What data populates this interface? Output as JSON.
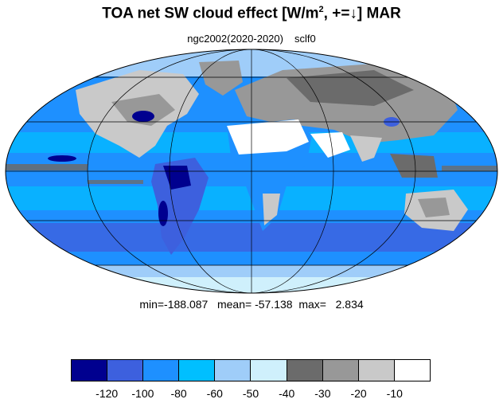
{
  "title": {
    "prefix": "TOA net SW cloud effect [W/m",
    "superscript": "2",
    "suffix": ", +=↓]  MAR"
  },
  "subtitle": {
    "left": "ngc2002(2020-2020)",
    "right": "sclf0"
  },
  "stats": "min=-188.087   mean= -57.138  max=   2.834",
  "legend": {
    "colors": [
      "#00008f",
      "#3d60de",
      "#1e90ff",
      "#00bfff",
      "#9fcdf9",
      "#cff0fc",
      "#6b6b6b",
      "#989898",
      "#c9c9c9",
      "#ffffff"
    ],
    "ticks": [
      "-120",
      "-100",
      "-80",
      "-60",
      "-50",
      "-40",
      "-30",
      "-20",
      "-10"
    ]
  },
  "map": {
    "projection": "mollweide",
    "ocean_base_color": "#1e90ff",
    "land_base_color": "#c9c9c9"
  }
}
